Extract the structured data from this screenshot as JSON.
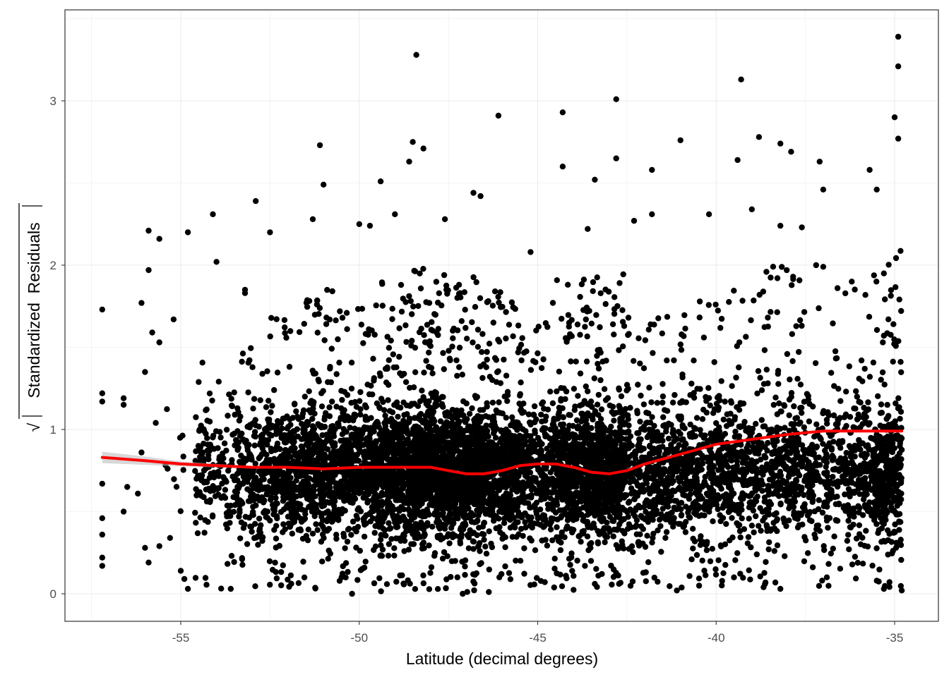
{
  "chart_data": {
    "type": "scatter",
    "title": "",
    "xlabel": "Latitude (decimal degrees)",
    "ylabel": "Standardized  Residuals",
    "ylabel_prefix": "√",
    "xlim": [
      -57.3,
      -34.8
    ],
    "ylim": [
      0,
      3.4
    ],
    "x_ticks": [
      -55,
      -50,
      -45,
      -40,
      -35
    ],
    "x_tick_labels": [
      "-55",
      "-50",
      "-45",
      "-40",
      "-35"
    ],
    "y_ticks": [
      0,
      1,
      2,
      3
    ],
    "y_tick_labels": [
      "0",
      "1",
      "2",
      "3"
    ],
    "grid": true,
    "legend": "none",
    "colors": {
      "points": "#000000",
      "smooth": "#ff0000",
      "band": "#bebebe",
      "grid": "#ebebeb",
      "frame": "#333333"
    },
    "scatter_outliers": [
      [
        -48.4,
        3.28
      ],
      [
        -34.9,
        3.39
      ],
      [
        -34.9,
        3.21
      ],
      [
        -35.0,
        2.9
      ],
      [
        -39.3,
        3.13
      ],
      [
        -42.8,
        3.01
      ],
      [
        -44.3,
        2.93
      ],
      [
        -46.1,
        2.91
      ],
      [
        -51.1,
        2.73
      ],
      [
        -48.5,
        2.75
      ],
      [
        -48.2,
        2.71
      ],
      [
        -41.0,
        2.76
      ],
      [
        -38.8,
        2.78
      ],
      [
        -38.2,
        2.74
      ],
      [
        -37.9,
        2.69
      ],
      [
        -34.9,
        2.77
      ],
      [
        -52.9,
        2.39
      ],
      [
        -54.1,
        2.31
      ],
      [
        -55.9,
        2.21
      ],
      [
        -55.6,
        2.16
      ],
      [
        -54.8,
        2.2
      ],
      [
        -51.0,
        2.49
      ],
      [
        -49.4,
        2.51
      ],
      [
        -48.6,
        2.63
      ],
      [
        -47.6,
        2.28
      ],
      [
        -46.8,
        2.44
      ],
      [
        -46.6,
        2.42
      ],
      [
        -44.3,
        2.6
      ],
      [
        -43.4,
        2.52
      ],
      [
        -42.8,
        2.65
      ],
      [
        -41.8,
        2.58
      ],
      [
        -41.8,
        2.31
      ],
      [
        -39.4,
        2.64
      ],
      [
        -37.1,
        2.63
      ],
      [
        -35.7,
        2.58
      ],
      [
        -35.5,
        2.46
      ],
      [
        -37.0,
        2.46
      ],
      [
        -50.0,
        2.25
      ],
      [
        -55.9,
        1.97
      ],
      [
        -56.1,
        1.77
      ],
      [
        -55.6,
        1.53
      ],
      [
        -55.8,
        1.59
      ],
      [
        -56.0,
        1.35
      ],
      [
        -54.0,
        2.02
      ],
      [
        -53.2,
        1.85
      ],
      [
        -53.2,
        1.83
      ],
      [
        -57.2,
        1.73
      ],
      [
        -57.2,
        1.22
      ],
      [
        -57.2,
        1.17
      ],
      [
        -56.6,
        1.19
      ],
      [
        -56.6,
        1.15
      ],
      [
        -57.2,
        0.67
      ],
      [
        -57.2,
        0.46
      ],
      [
        -57.2,
        0.36
      ],
      [
        -57.2,
        0.22
      ],
      [
        -57.2,
        0.17
      ],
      [
        -56.6,
        0.5
      ],
      [
        -56.5,
        0.65
      ],
      [
        -56.0,
        0.28
      ],
      [
        -55.9,
        0.19
      ],
      [
        -55.6,
        0.29
      ],
      [
        -55.3,
        0.34
      ],
      [
        -54.9,
        0.09
      ],
      [
        -56.2,
        0.61
      ],
      [
        -56.1,
        0.86
      ],
      [
        -55.7,
        1.04
      ],
      [
        -55.2,
        1.67
      ],
      [
        -52.5,
        2.2
      ],
      [
        -51.3,
        2.28
      ],
      [
        -49.7,
        2.24
      ],
      [
        -49.0,
        2.31
      ],
      [
        -45.2,
        2.08
      ],
      [
        -43.6,
        2.22
      ],
      [
        -42.3,
        2.27
      ],
      [
        -40.2,
        2.31
      ],
      [
        -39.0,
        2.34
      ],
      [
        -38.2,
        2.24
      ],
      [
        -37.6,
        2.23
      ],
      [
        -36.6,
        1.86
      ],
      [
        -36.2,
        1.9
      ],
      [
        -35.3,
        1.95
      ],
      [
        -37.2,
        2.0
      ],
      [
        -37.0,
        1.99
      ],
      [
        -34.8,
        0.02
      ],
      [
        -35.3,
        0.03
      ],
      [
        -35.5,
        0.08
      ],
      [
        -36.9,
        0.1
      ],
      [
        -38.2,
        0.03
      ],
      [
        -39.5,
        0.1
      ],
      [
        -41.1,
        0.02
      ],
      [
        -47.1,
        0.0
      ],
      [
        -50.2,
        0.0
      ],
      [
        -53.6,
        0.03
      ],
      [
        -54.8,
        0.03
      ],
      [
        -55.0,
        0.14
      ]
    ],
    "bulk_bands": [
      [
        -55.5,
        -54.6,
        0.05,
        1.35,
        10
      ],
      [
        -54.6,
        -53.6,
        0.03,
        1.55,
        140
      ],
      [
        -53.6,
        -52.6,
        0.02,
        1.6,
        220
      ],
      [
        -52.6,
        -51.6,
        0.02,
        1.72,
        340
      ],
      [
        -51.6,
        -50.6,
        0.02,
        1.85,
        420
      ],
      [
        -50.6,
        -49.6,
        0.02,
        1.75,
        380
      ],
      [
        -49.6,
        -48.6,
        0.01,
        1.9,
        560
      ],
      [
        -48.6,
        -47.6,
        0.01,
        2.0,
        700
      ],
      [
        -47.6,
        -46.6,
        0.0,
        1.95,
        720
      ],
      [
        -46.6,
        -45.6,
        0.01,
        1.85,
        500
      ],
      [
        -45.6,
        -44.6,
        0.02,
        1.7,
        340
      ],
      [
        -44.6,
        -43.6,
        0.01,
        1.95,
        520
      ],
      [
        -43.6,
        -42.6,
        0.0,
        1.95,
        640
      ],
      [
        -42.6,
        -41.6,
        0.02,
        1.7,
        300
      ],
      [
        -41.6,
        -40.6,
        0.02,
        1.75,
        280
      ],
      [
        -40.6,
        -39.6,
        0.02,
        1.8,
        300
      ],
      [
        -39.6,
        -38.6,
        0.02,
        1.9,
        260
      ],
      [
        -38.6,
        -37.6,
        0.02,
        2.05,
        280
      ],
      [
        -37.6,
        -36.6,
        0.03,
        1.8,
        200
      ],
      [
        -36.6,
        -35.6,
        0.02,
        1.9,
        240
      ],
      [
        -35.6,
        -34.8,
        0.01,
        2.2,
        380
      ]
    ],
    "smooth_x": [
      -57.2,
      -56.0,
      -55.0,
      -54.0,
      -53.0,
      -52.0,
      -51.0,
      -50.0,
      -49.0,
      -48.0,
      -47.5,
      -47.0,
      -46.5,
      -46.0,
      -45.5,
      -45.0,
      -44.5,
      -44.0,
      -43.5,
      -43.0,
      -42.5,
      -42.0,
      -41.5,
      -41.0,
      -40.5,
      -40.0,
      -39.0,
      -38.0,
      -37.0,
      -36.0,
      -35.0,
      -34.8
    ],
    "smooth_y": [
      0.83,
      0.81,
      0.79,
      0.78,
      0.77,
      0.77,
      0.76,
      0.77,
      0.77,
      0.77,
      0.75,
      0.73,
      0.73,
      0.75,
      0.78,
      0.79,
      0.79,
      0.77,
      0.74,
      0.73,
      0.75,
      0.79,
      0.82,
      0.85,
      0.88,
      0.91,
      0.94,
      0.97,
      0.99,
      0.99,
      0.99,
      0.99
    ],
    "band_halfwidth": [
      0.035,
      0.025,
      0.015,
      0.01,
      0.008,
      0.007,
      0.006,
      0.006,
      0.006,
      0.006,
      0.006,
      0.006,
      0.006,
      0.006,
      0.006,
      0.006,
      0.006,
      0.006,
      0.006,
      0.006,
      0.006,
      0.006,
      0.006,
      0.006,
      0.006,
      0.006,
      0.006,
      0.006,
      0.006,
      0.006,
      0.007,
      0.008
    ]
  }
}
